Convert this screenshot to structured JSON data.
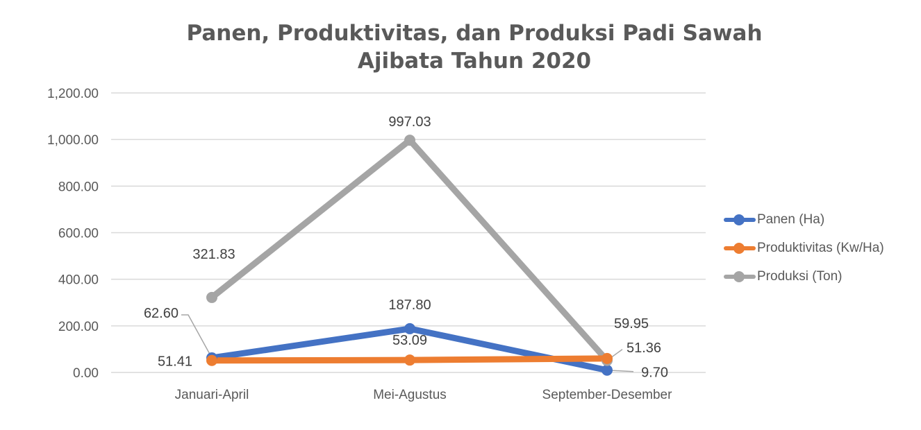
{
  "chart_data": {
    "type": "line",
    "title_lines": [
      "Panen, Produktivitas, dan Produksi Padi Sawah",
      "Ajibata Tahun 2020"
    ],
    "categories": [
      "Januari-April",
      "Mei-Agustus",
      "September-Desember"
    ],
    "ylim": [
      0,
      1200
    ],
    "yticks": [
      "0.00",
      "200.00",
      "400.00",
      "600.00",
      "800.00",
      "1,000.00",
      "1,200.00"
    ],
    "grid": true,
    "legend_position": "right",
    "series": [
      {
        "name": "Panen (Ha)",
        "color": "#4472C4",
        "values": [
          62.6,
          187.8,
          9.7
        ],
        "labels": [
          "62.60",
          "187.80",
          "9.70"
        ]
      },
      {
        "name": "Produktivitas (Kw/Ha)",
        "color": "#ED7D31",
        "values": [
          51.41,
          53.09,
          59.95
        ],
        "labels": [
          "51.41",
          "53.09",
          "59.95"
        ]
      },
      {
        "name": "Produksi (Ton)",
        "color": "#A5A5A5",
        "values": [
          321.83,
          997.03,
          51.36
        ],
        "labels": [
          "321.83",
          "997.03",
          "51.36"
        ]
      }
    ]
  }
}
